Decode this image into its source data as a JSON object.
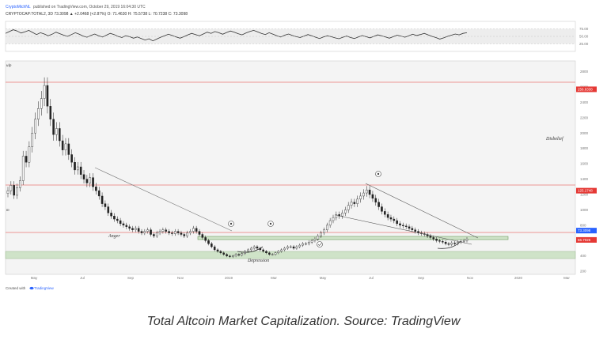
{
  "header": {
    "publisher": "CryptoMichNL",
    "published_text": "published on TradingView.com, October 29, 2019 16:04:30 UTC",
    "symbol_line": "CRYPTOCAP:TOTAL2, 3D 73.3098 ▲ +2.0468 (+2.87%) O: 71.4630 H: 75.5738 L: 70.7238 C: 73.3098"
  },
  "footer": {
    "created_with": "Created with",
    "brand": "TradingView"
  },
  "caption": "Total Altcoin Market Capitalization. Source: TradingView",
  "chart_data": [
    {
      "type": "line",
      "name": "rsi-panel",
      "y_ticks": [
        "75.00",
        "50.00",
        "25.00"
      ],
      "ylim": [
        0,
        100
      ],
      "band": [
        25,
        75
      ],
      "x": [
        0,
        1,
        2,
        3,
        4,
        5,
        6,
        7,
        8,
        9,
        10,
        11,
        12,
        13,
        14,
        15,
        16,
        17,
        18,
        19,
        20,
        21,
        22,
        23,
        24,
        25,
        26,
        27,
        28,
        29,
        30,
        31,
        32,
        33,
        34,
        35,
        36,
        37,
        38,
        39,
        40,
        41,
        42,
        43,
        44,
        45,
        46,
        47,
        48,
        49,
        50,
        51,
        52,
        53,
        54,
        55,
        56,
        57,
        58,
        59,
        60,
        61,
        62,
        63,
        64,
        65,
        66,
        67,
        68,
        69,
        70,
        71,
        72,
        73,
        74,
        75,
        76,
        77,
        78,
        79,
        80,
        81,
        82,
        83,
        84,
        85,
        86,
        87,
        88,
        89,
        90,
        91,
        92,
        93,
        94,
        95,
        96,
        97,
        98,
        99,
        100,
        101,
        102,
        103,
        104,
        105,
        106,
        107,
        108,
        109,
        110,
        111,
        112,
        113,
        114,
        115,
        116,
        117,
        118,
        119
      ],
      "values": [
        60,
        66,
        72,
        68,
        61,
        65,
        70,
        63,
        56,
        62,
        58,
        52,
        57,
        64,
        59,
        54,
        50,
        56,
        62,
        57,
        51,
        47,
        53,
        58,
        52,
        48,
        54,
        60,
        56,
        50,
        46,
        52,
        49,
        44,
        48,
        43,
        38,
        42,
        35,
        41,
        47,
        52,
        57,
        53,
        48,
        44,
        49,
        55,
        60,
        56,
        52,
        58,
        64,
        60,
        66,
        62,
        57,
        63,
        68,
        64,
        59,
        55,
        61,
        66,
        70,
        65,
        60,
        56,
        62,
        57,
        52,
        48,
        54,
        58,
        53,
        49,
        46,
        51,
        56,
        52,
        47,
        43,
        48,
        52,
        49,
        45,
        42,
        47,
        51,
        46,
        43,
        48,
        53,
        49,
        45,
        50,
        55,
        52,
        48,
        44,
        49,
        54,
        51,
        47,
        52,
        57,
        53,
        56,
        60,
        55,
        50,
        46,
        41,
        45,
        50,
        54,
        58,
        55,
        60,
        62
      ]
    },
    {
      "type": "candlestick",
      "name": "total2-price",
      "y_ticks": [
        "2800",
        "2600",
        "2400",
        "2200",
        "2000",
        "1800",
        "1600",
        "1400",
        "1200",
        "1000",
        "800",
        "600",
        "400",
        "200"
      ],
      "ylim": [
        160,
        2940
      ],
      "x_ticks": [
        "May",
        "Jul",
        "Sep",
        "Nov",
        "2019",
        "Mar",
        "May",
        "Jul",
        "Sep",
        "Nov",
        "2020",
        "Mar"
      ],
      "close": [
        1250,
        1320,
        1190,
        1290,
        1380,
        1700,
        1620,
        1820,
        2000,
        2180,
        2320,
        2450,
        2620,
        2350,
        2180,
        1980,
        2060,
        1900,
        1780,
        1860,
        1720,
        1620,
        1520,
        1560,
        1460,
        1400,
        1350,
        1420,
        1300,
        1250,
        1180,
        1080,
        1040,
        960,
        920,
        880,
        860,
        820,
        800,
        780,
        760,
        740,
        760,
        720,
        700,
        720,
        740,
        680,
        660,
        700,
        720,
        740,
        720,
        700,
        690,
        720,
        700,
        680,
        660,
        700,
        720,
        760,
        720,
        680,
        640,
        600,
        560,
        520,
        480,
        460,
        440,
        420,
        400,
        390,
        400,
        420,
        410,
        430,
        460,
        480,
        500,
        520,
        500,
        480,
        460,
        440,
        420,
        420,
        440,
        460,
        480,
        500,
        520,
        520,
        500,
        520,
        540,
        560,
        560,
        580,
        600,
        620,
        660,
        700,
        740,
        800,
        860,
        900,
        940,
        920,
        960,
        1000,
        1060,
        1100,
        1080,
        1140,
        1180,
        1220,
        1260,
        1200,
        1150,
        1100,
        1040,
        980,
        940,
        900,
        880,
        860,
        820,
        800,
        790,
        780,
        760,
        740,
        720,
        700,
        690,
        680,
        660,
        640,
        620,
        600,
        590,
        580,
        560,
        550,
        570,
        560,
        580,
        590,
        600,
        620
      ],
      "horizontal_levels": [
        {
          "value": "256.6338",
          "y": 2570
        },
        {
          "value": "125.1748",
          "y": 1250
        },
        {
          "value": "73.3098",
          "y": 730
        },
        {
          "value": "66.7026",
          "y": 650
        }
      ],
      "annotations": {
        "disbelief": "Disbelief",
        "anger": "Anger",
        "depression": "Depression",
        "left_label_top": "ulp",
        "left_label_mid": "m"
      }
    }
  ]
}
